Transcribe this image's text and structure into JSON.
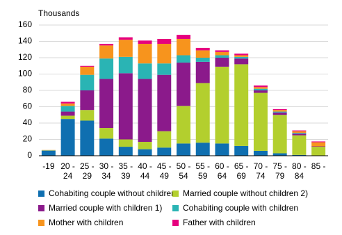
{
  "chart_data": {
    "type": "bar",
    "stacked": true,
    "y_label": "Thousands",
    "categories": [
      "-19",
      "20 - 24",
      "25 - 29",
      "30 - 34",
      "35 - 39",
      "40 - 44",
      "45 - 49",
      "50 - 54",
      "55 - 59",
      "60 - 64",
      "65 - 69",
      "70 - 74",
      "75 - 79",
      "80 - 84",
      "85 -"
    ],
    "series": [
      {
        "name": "Cohabiting couple without children",
        "color": "#0f6fb0",
        "values": [
          6,
          45,
          43,
          21,
          11,
          8,
          10,
          15,
          16,
          15,
          12,
          6,
          3,
          1,
          0
        ]
      },
      {
        "name": "Married couple without children 2)",
        "color": "#b3cf2e",
        "values": [
          0,
          4,
          13,
          13,
          9,
          9,
          20,
          46,
          73,
          94,
          100,
          71,
          47,
          24,
          11
        ]
      },
      {
        "name": "Married couple with children 1)",
        "color": "#8b1a8b",
        "values": [
          0,
          5,
          24,
          60,
          81,
          77,
          69,
          53,
          26,
          11,
          7,
          3,
          3,
          2,
          0.5
        ]
      },
      {
        "name": "Cohabiting couple with children",
        "color": "#2ab4b4",
        "values": [
          0.5,
          7,
          19,
          25,
          20,
          19,
          14,
          9,
          5,
          3,
          2,
          2,
          1,
          1,
          0
        ]
      },
      {
        "name": "Mother with children",
        "color": "#f7941d",
        "values": [
          0.5,
          3,
          10,
          16,
          21,
          24,
          24,
          20,
          9,
          4,
          2,
          2,
          2,
          2,
          5
        ]
      },
      {
        "name": "Father with children",
        "color": "#e6007e",
        "values": [
          0,
          2,
          1,
          2,
          3,
          4,
          6,
          5,
          3,
          2,
          2,
          2,
          1,
          1,
          1
        ]
      }
    ],
    "ylim": [
      0,
      160
    ],
    "yticks": [
      0,
      20,
      40,
      60,
      80,
      100,
      120,
      140,
      160
    ],
    "grid": true
  }
}
